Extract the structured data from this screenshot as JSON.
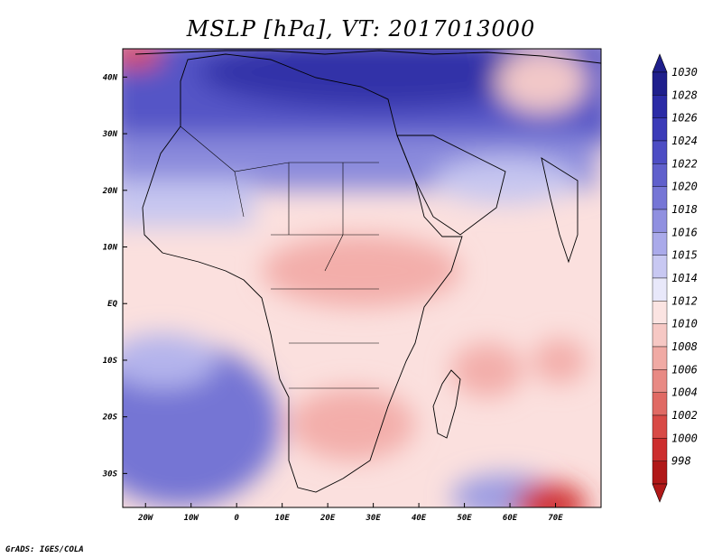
{
  "title": "MSLP [hPa], VT: 2017013000",
  "credit": "GrADS: IGES/COLA",
  "map": {
    "region": "Africa",
    "lon_range": [
      -25,
      80
    ],
    "lat_range": [
      -36,
      45
    ],
    "lon_ticks": [
      {
        "value": -20,
        "label": "20W"
      },
      {
        "value": -10,
        "label": "10W"
      },
      {
        "value": 0,
        "label": "0"
      },
      {
        "value": 10,
        "label": "10E"
      },
      {
        "value": 20,
        "label": "20E"
      },
      {
        "value": 30,
        "label": "30E"
      },
      {
        "value": 40,
        "label": "40E"
      },
      {
        "value": 50,
        "label": "50E"
      },
      {
        "value": 60,
        "label": "60E"
      },
      {
        "value": 70,
        "label": "70E"
      }
    ],
    "lat_ticks": [
      {
        "value": 40,
        "label": "40N"
      },
      {
        "value": 30,
        "label": "30N"
      },
      {
        "value": 20,
        "label": "20N"
      },
      {
        "value": 10,
        "label": "10N"
      },
      {
        "value": 0,
        "label": "EQ"
      },
      {
        "value": -10,
        "label": "10S"
      },
      {
        "value": -20,
        "label": "20S"
      },
      {
        "value": -30,
        "label": "30S"
      }
    ]
  },
  "colorbar": {
    "labels": [
      "1030",
      "1028",
      "1026",
      "1024",
      "1022",
      "1020",
      "1018",
      "1016",
      "1015",
      "1014",
      "1012",
      "1010",
      "1008",
      "1006",
      "1004",
      "1002",
      "1000",
      "998"
    ],
    "colors": [
      "#1f1f8c",
      "#2b2ba6",
      "#3b3bb8",
      "#4d4dc4",
      "#6060cc",
      "#7676d6",
      "#9090e0",
      "#aaaaea",
      "#c8c8f2",
      "#e8e8fa",
      "#fbe4e2",
      "#f6c8c4",
      "#f0aaa4",
      "#e88a84",
      "#e06a64",
      "#d84a46",
      "#cc2e2e",
      "#b01818"
    ]
  }
}
